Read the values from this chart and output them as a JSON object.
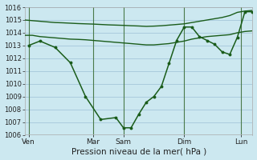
{
  "background_color": "#cce8f0",
  "grid_color": "#aaccdd",
  "line_color": "#1a5c1a",
  "xlabel": "Pression niveau de la mer( hPa )",
  "xlabel_fontsize": 7.5,
  "ylim": [
    1006,
    1016
  ],
  "yticks": [
    1006,
    1007,
    1008,
    1009,
    1010,
    1011,
    1012,
    1013,
    1014,
    1015,
    1016
  ],
  "xlim_min": 0,
  "xlim_max": 30,
  "day_labels": [
    "Ven",
    "Mar",
    "Sam",
    "Dim",
    "Lun"
  ],
  "day_positions": [
    0.5,
    9,
    13,
    21,
    28.5
  ],
  "vline_positions": [
    0.5,
    9,
    13,
    21,
    28.5
  ],
  "line_top_x": [
    0,
    1,
    2,
    3,
    4,
    5,
    6,
    7,
    8,
    9,
    10,
    11,
    12,
    13,
    14,
    15,
    16,
    17,
    18,
    19,
    20,
    21,
    22,
    23,
    24,
    25,
    26,
    27,
    28,
    29,
    30
  ],
  "line_top_y": [
    1015.0,
    1014.95,
    1014.9,
    1014.85,
    1014.8,
    1014.78,
    1014.75,
    1014.72,
    1014.7,
    1014.68,
    1014.65,
    1014.62,
    1014.6,
    1014.58,
    1014.55,
    1014.53,
    1014.5,
    1014.52,
    1014.55,
    1014.6,
    1014.65,
    1014.7,
    1014.8,
    1014.9,
    1015.0,
    1015.1,
    1015.2,
    1015.35,
    1015.6,
    1015.7,
    1015.75
  ],
  "line_mid_x": [
    0,
    1,
    2,
    3,
    4,
    5,
    6,
    7,
    8,
    9,
    10,
    11,
    12,
    13,
    14,
    15,
    16,
    17,
    18,
    19,
    20,
    21,
    22,
    23,
    24,
    25,
    26,
    27,
    28,
    29,
    30
  ],
  "line_mid_y": [
    1013.8,
    1013.8,
    1013.7,
    1013.65,
    1013.6,
    1013.55,
    1013.5,
    1013.48,
    1013.45,
    1013.4,
    1013.35,
    1013.3,
    1013.25,
    1013.2,
    1013.15,
    1013.1,
    1013.05,
    1013.05,
    1013.1,
    1013.15,
    1013.25,
    1013.35,
    1013.5,
    1013.6,
    1013.7,
    1013.75,
    1013.8,
    1013.85,
    1014.0,
    1014.1,
    1014.15
  ],
  "line_dip_x": [
    0.5,
    2,
    4,
    6,
    8,
    10,
    12,
    13,
    14,
    15,
    16,
    17,
    18,
    19,
    20,
    21,
    22,
    23,
    24,
    25,
    26,
    27,
    28,
    29,
    30
  ],
  "line_dip_y": [
    1013.0,
    1013.35,
    1012.85,
    1011.65,
    1009.0,
    1007.2,
    1007.35,
    1006.55,
    1006.55,
    1007.6,
    1008.55,
    1009.0,
    1009.8,
    1011.6,
    1013.4,
    1014.45,
    1014.45,
    1013.7,
    1013.4,
    1013.1,
    1012.5,
    1012.3,
    1013.65,
    1015.65,
    1015.65
  ]
}
